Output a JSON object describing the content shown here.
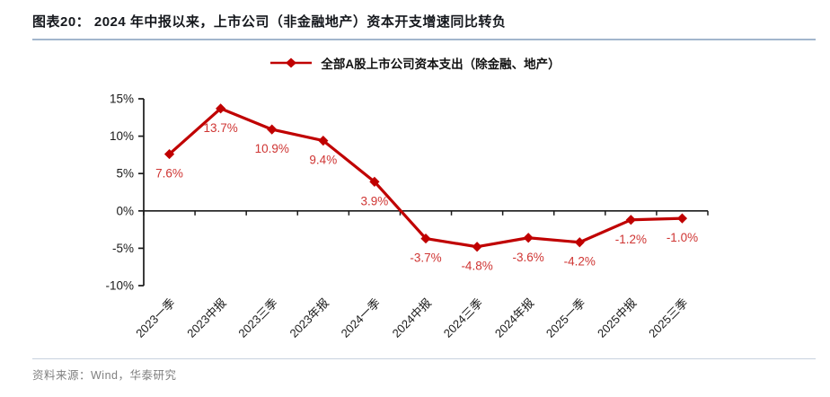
{
  "header": {
    "title": "图表20：  2024 年中报以来，上市公司（非金融地产）资本开支增速同比转负"
  },
  "legend": {
    "label": "全部A股上市公司资本支出（除金融、地产）"
  },
  "chart_data": {
    "type": "line",
    "title": "2024 年中报以来，上市公司（非金融地产）资本开支增速同比转负",
    "series": [
      {
        "name": "全部A股上市公司资本支出（除金融、地产）",
        "values": [
          7.6,
          13.7,
          10.9,
          9.4,
          3.9,
          -3.7,
          -4.8,
          -3.6,
          -4.2,
          -1.2,
          -1.0
        ],
        "point_labels": [
          "7.6%",
          "13.7%",
          "10.9%",
          "9.4%",
          "3.9%",
          "-3.7%",
          "-4.8%",
          "-3.6%",
          "-4.2%",
          "-1.2%",
          "-1.0%"
        ]
      }
    ],
    "categories": [
      "2023一季",
      "2023中报",
      "2023三季",
      "2023年报",
      "2024一季",
      "2024中报",
      "2024三季",
      "2024年报",
      "2025一季",
      "2025中报",
      "2025三季"
    ],
    "xlabel": "",
    "ylabel": "",
    "ylim": [
      -10,
      15
    ],
    "yticks": {
      "values": [
        15,
        10,
        5,
        0,
        -5,
        -10
      ],
      "labels": [
        "15%",
        "10%",
        "5%",
        "0%",
        "-5%",
        "-10%"
      ]
    },
    "grid": false,
    "legend_position": "top",
    "marker": "diamond"
  },
  "colors": {
    "line": "#c00000",
    "marker": "#c00000",
    "data_label": "#cf3533",
    "axis": "#1a1a1a",
    "tick_label": "#1a1a1a",
    "title_underline": "#a2b6cd",
    "footer_rule": "#c7d2df",
    "footer_text": "#7f7f7f"
  },
  "footer": {
    "source": "资料来源：Wind，华泰研究"
  }
}
